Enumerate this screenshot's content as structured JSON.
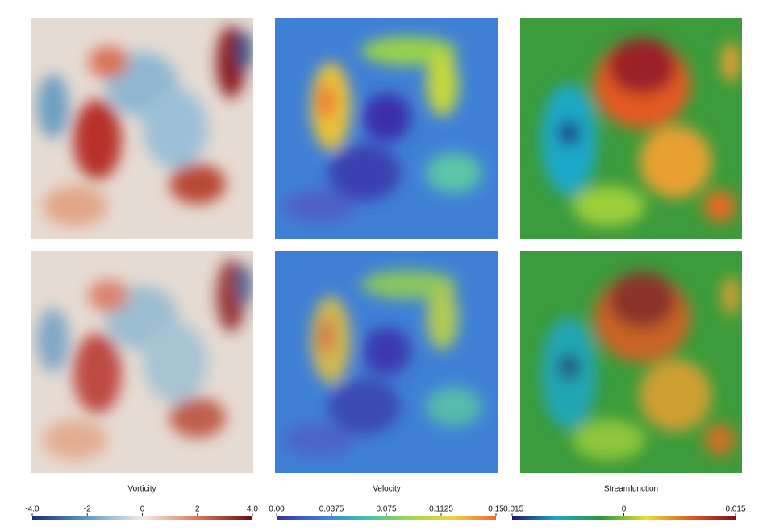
{
  "columns": [
    {
      "label": "Vorticity",
      "colorbar": {
        "lim": [
          -4,
          4
        ],
        "ticks": [
          {
            "value": -4,
            "label": "-4.0"
          },
          -2,
          0,
          2,
          {
            "value": 4,
            "label": "4.0"
          }
        ],
        "colors": [
          "#1b2f6e",
          "#5f9cc6",
          "#f1ede6",
          "#da7a5a",
          "#6a0b16"
        ]
      }
    },
    {
      "label": "Velocity",
      "colorbar": {
        "lim": [
          0,
          0.15
        ],
        "ticks": [
          {
            "value": 0,
            "label": "0.00"
          },
          0.0375,
          0.075,
          0.1125,
          0.15
        ],
        "colors": [
          "#3b2fa8",
          "#3a7be0",
          "#3cc0b0",
          "#9cd94a",
          "#f0d23a",
          "#f06a30"
        ]
      }
    },
    {
      "label": "Streamfunction",
      "colorbar": {
        "lim": [
          -0.015,
          0.015
        ],
        "ticks": [
          -0.015,
          0,
          0.015
        ],
        "colors": [
          "#23176b",
          "#1aa8c8",
          "#2a9a3a",
          "#e8e030",
          "#e05a20",
          "#7a1020"
        ]
      }
    }
  ]
}
